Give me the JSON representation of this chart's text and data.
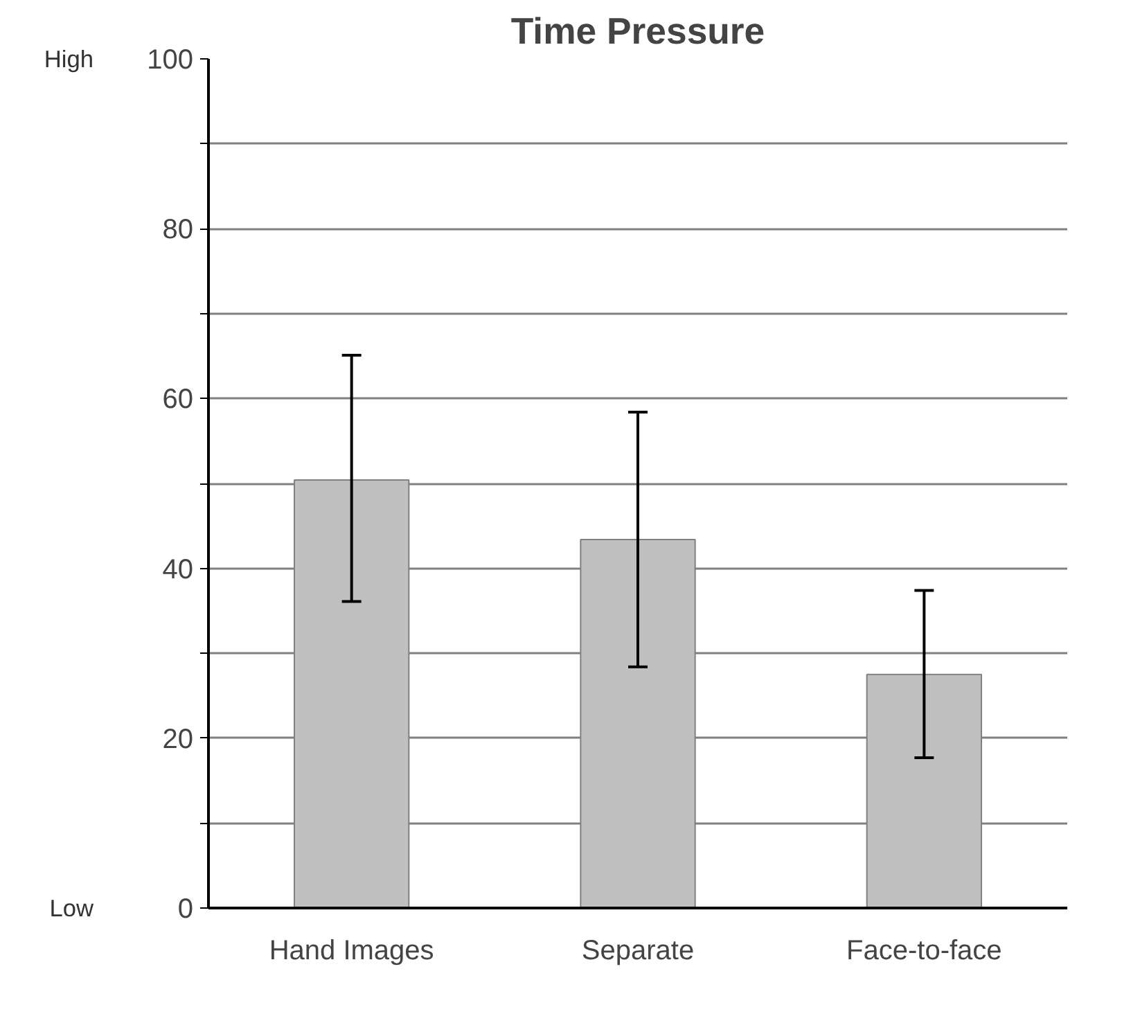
{
  "chart_data": {
    "type": "bar",
    "title": "Time Pressure",
    "categories": [
      "Hand Images",
      "Separate",
      "Face-to-face"
    ],
    "values": [
      50.4,
      43.4,
      27.5
    ],
    "color": "#c0c0c0",
    "errors": [
      [
        36.1,
        65.1
      ],
      [
        28.4,
        58.4
      ],
      [
        17.7,
        37.4
      ]
    ],
    "ylim": [
      0,
      100
    ],
    "yticks": [
      0,
      {
        "value": 10,
        "label": null
      },
      20,
      {
        "value": 30,
        "label": null
      },
      40,
      {
        "value": 50,
        "label": null
      },
      60,
      {
        "value": 70,
        "label": null
      },
      80,
      {
        "value": 90,
        "label": null
      },
      100
    ],
    "grid": "y",
    "annotations": [
      "High",
      "Low"
    ]
  }
}
